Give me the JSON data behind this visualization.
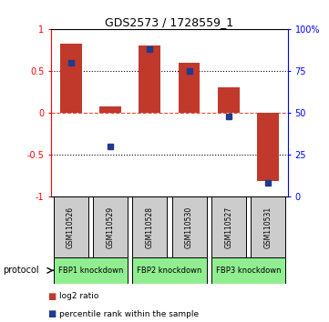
{
  "title": "GDS2573 / 1728559_1",
  "samples": [
    "GSM110526",
    "GSM110529",
    "GSM110528",
    "GSM110530",
    "GSM110527",
    "GSM110531"
  ],
  "log2_ratios": [
    0.82,
    0.08,
    0.8,
    0.6,
    0.3,
    -0.82
  ],
  "percentile_ranks": [
    80,
    30,
    88,
    75,
    48,
    8
  ],
  "proto_spans": [
    [
      0,
      1,
      "FBP1 knockdown"
    ],
    [
      2,
      3,
      "FBP2 knockdown"
    ],
    [
      4,
      5,
      "FBP3 knockdown"
    ]
  ],
  "ylim_left": [
    -1,
    1
  ],
  "ylim_right": [
    0,
    100
  ],
  "bar_color": "#C0392B",
  "dot_color": "#1F3A8F",
  "zero_line_color": "#E74C3C",
  "sample_box_color": "#CCCCCC",
  "proto_box_color": "#90EE90",
  "background_color": "#FFFFFF",
  "legend_bar_label": "log2 ratio",
  "legend_dot_label": "percentile rank within the sample"
}
